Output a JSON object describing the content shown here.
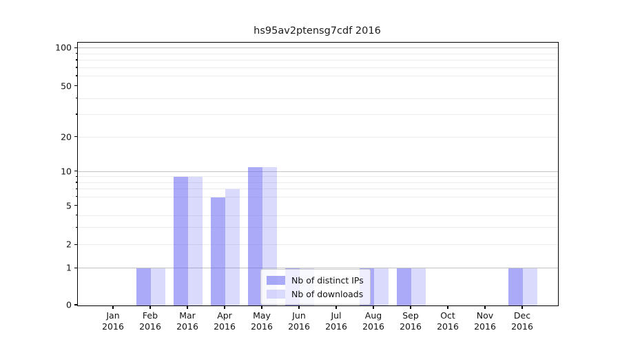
{
  "title": "hs95av2ptensg7cdf 2016",
  "chart_data": {
    "type": "bar",
    "title": "hs95av2ptensg7cdf 2016",
    "xlabel": "",
    "ylabel": "",
    "categories": [
      {
        "month": "Jan",
        "year": "2016"
      },
      {
        "month": "Feb",
        "year": "2016"
      },
      {
        "month": "Mar",
        "year": "2016"
      },
      {
        "month": "Apr",
        "year": "2016"
      },
      {
        "month": "May",
        "year": "2016"
      },
      {
        "month": "Jun",
        "year": "2016"
      },
      {
        "month": "Jul",
        "year": "2016"
      },
      {
        "month": "Aug",
        "year": "2016"
      },
      {
        "month": "Sep",
        "year": "2016"
      },
      {
        "month": "Oct",
        "year": "2016"
      },
      {
        "month": "Nov",
        "year": "2016"
      },
      {
        "month": "Dec",
        "year": "2016"
      }
    ],
    "series": [
      {
        "name": "Nb of distinct IPs",
        "color": "#6464f3",
        "alpha": 0.55,
        "values": [
          0,
          1,
          9,
          6,
          11,
          1,
          0,
          1,
          1,
          0,
          0,
          1
        ]
      },
      {
        "name": "Nb of downloads",
        "color": "#6464f3",
        "alpha": 0.24,
        "values": [
          0,
          1,
          9,
          7,
          11,
          1,
          0,
          1,
          1,
          0,
          0,
          1
        ]
      }
    ],
    "y_axis": {
      "scale": "symlog",
      "ylim": [
        0,
        111
      ],
      "ticks": [
        {
          "v": 0,
          "label": "0"
        },
        {
          "v": 1,
          "label": "1"
        },
        {
          "v": 2,
          "label": "2"
        },
        {
          "v": 5,
          "label": "5"
        },
        {
          "v": 10,
          "label": "10"
        },
        {
          "v": 20,
          "label": "20"
        },
        {
          "v": 50,
          "label": "50"
        },
        {
          "v": 100,
          "label": "100"
        }
      ],
      "scale_anchors": [
        {
          "v": 0,
          "f": 0.0
        },
        {
          "v": 1,
          "f": 0.1405
        },
        {
          "v": 2,
          "f": 0.2295
        },
        {
          "v": 5,
          "f": 0.3777
        },
        {
          "v": 10,
          "f": 0.5086
        },
        {
          "v": 20,
          "f": 0.6395
        },
        {
          "v": 50,
          "f": 0.8332
        },
        {
          "v": 100,
          "f": 0.9782
        }
      ]
    },
    "grid": {
      "enabled": true,
      "major_values": [
        1,
        10,
        100
      ],
      "minor_values": [
        2,
        3,
        4,
        6,
        7,
        8,
        9,
        20,
        30,
        40,
        60,
        70,
        80,
        90
      ]
    },
    "legend": {
      "position": "lower center",
      "items": [
        "Nb of distinct IPs",
        "Nb of downloads"
      ]
    }
  }
}
